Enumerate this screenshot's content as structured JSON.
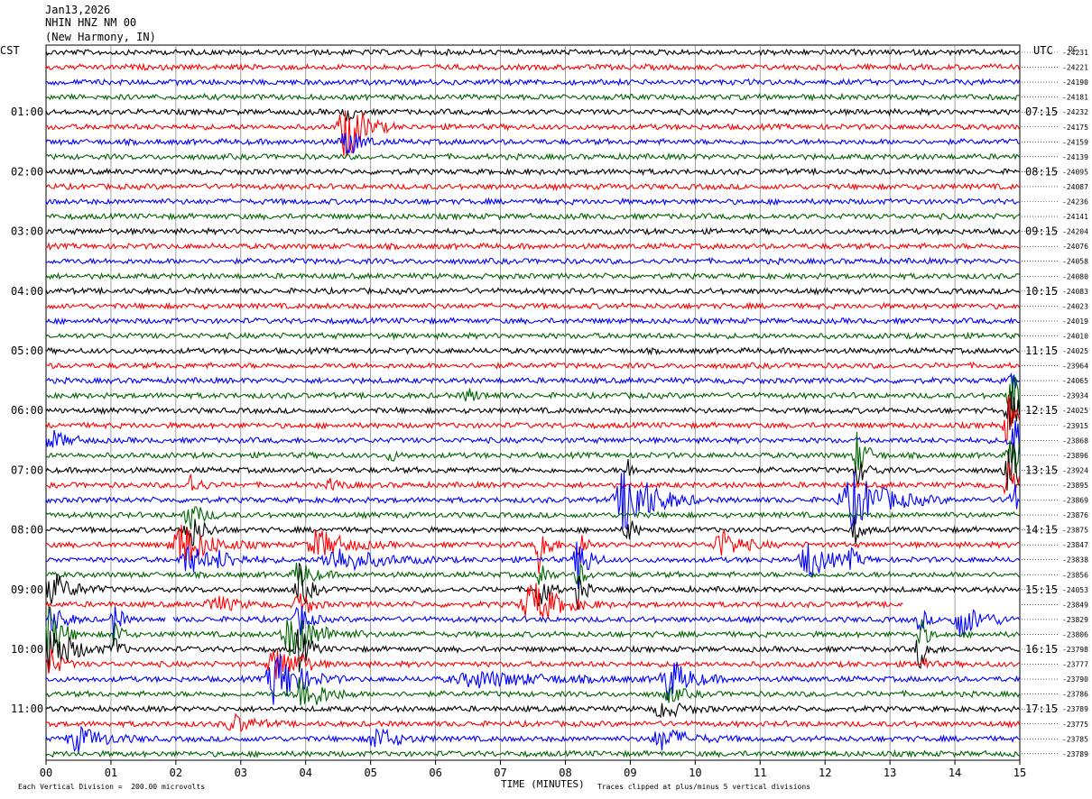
{
  "header": {
    "date": "Jan13,2026",
    "station": "NHIN HNZ NM 00",
    "location": "(New Harmony, IN)"
  },
  "left_tz": "CST",
  "right_tz": "UTC",
  "dc_label": "DC",
  "footer": {
    "scale_note": "Each Vertical Division =  200.00 microvolts",
    "xlabel": "TIME (MINUTES)",
    "clip_note": "Traces clipped at plus/minus 5 vertical divisions"
  },
  "colors": {
    "cycle": [
      "#000000",
      "#ff0000",
      "#0000ff",
      "#006400"
    ],
    "grid": "#888888"
  },
  "chart_data": {
    "type": "line",
    "xlabel": "TIME (MINUTES)",
    "xlim": [
      0,
      15
    ],
    "x_ticks": [
      "00",
      "01",
      "02",
      "03",
      "04",
      "05",
      "06",
      "07",
      "08",
      "09",
      "10",
      "11",
      "12",
      "13",
      "14",
      "15"
    ],
    "trace_count": 48,
    "trace_interval_minutes": 15,
    "left_hour_labels": [
      {
        "row": 4,
        "label": "01:00"
      },
      {
        "row": 8,
        "label": "02:00"
      },
      {
        "row": 12,
        "label": "03:00"
      },
      {
        "row": 16,
        "label": "04:00"
      },
      {
        "row": 20,
        "label": "05:00"
      },
      {
        "row": 24,
        "label": "06:00"
      },
      {
        "row": 28,
        "label": "07:00"
      },
      {
        "row": 32,
        "label": "08:00"
      },
      {
        "row": 36,
        "label": "09:00"
      },
      {
        "row": 40,
        "label": "10:00"
      },
      {
        "row": 44,
        "label": "11:00"
      }
    ],
    "right_hour_labels": [
      {
        "row": 4,
        "label": "07:15"
      },
      {
        "row": 8,
        "label": "08:15"
      },
      {
        "row": 12,
        "label": "09:15"
      },
      {
        "row": 16,
        "label": "10:15"
      },
      {
        "row": 20,
        "label": "11:15"
      },
      {
        "row": 24,
        "label": "12:15"
      },
      {
        "row": 28,
        "label": "13:15"
      },
      {
        "row": 32,
        "label": "14:15"
      },
      {
        "row": 36,
        "label": "15:15"
      },
      {
        "row": 40,
        "label": "16:15"
      },
      {
        "row": 44,
        "label": "17:15"
      }
    ],
    "dc_offsets": [
      "-24231",
      "-24221",
      "-24190",
      "-24181",
      "-24232",
      "-24175",
      "-24159",
      "-24139",
      "-24095",
      "-24087",
      "-24236",
      "-24141",
      "-24204",
      "-24076",
      "-24058",
      "-24080",
      "-24083",
      "-24023",
      "-24019",
      "-24010",
      "-24025",
      "-23964",
      "-24065",
      "-23934",
      "-24025",
      "-23915",
      "-23868",
      "-23896",
      "-23924",
      "-23895",
      "-23869",
      "-23876",
      "-23875",
      "-23847",
      "-23838",
      "-23856",
      "-24053",
      "-23849",
      "-23829",
      "-23806",
      "-23798",
      "-23777",
      "-23790",
      "-23786",
      "-23789",
      "-23775",
      "-23785",
      "-23789"
    ],
    "events": [
      {
        "row": 4,
        "minute": 4.62,
        "amp": 0.9,
        "dur": 0.1
      },
      {
        "row": 5,
        "minute": 4.62,
        "amp": 2.6,
        "dur": 0.25
      },
      {
        "row": 6,
        "minute": 4.62,
        "amp": 1.2,
        "dur": 0.2
      },
      {
        "row": 22,
        "minute": 14.9,
        "amp": 0.8,
        "dur": 0.15
      },
      {
        "row": 23,
        "minute": 6.5,
        "amp": 0.4,
        "dur": 0.2
      },
      {
        "row": 23,
        "minute": 14.9,
        "amp": 2.0,
        "dur": 0.2
      },
      {
        "row": 24,
        "minute": 14.85,
        "amp": 1.2,
        "dur": 0.2
      },
      {
        "row": 25,
        "minute": 14.85,
        "amp": 2.3,
        "dur": 0.2
      },
      {
        "row": 26,
        "minute": 0.1,
        "amp": 0.6,
        "dur": 0.25
      },
      {
        "row": 26,
        "minute": 14.9,
        "amp": 2.0,
        "dur": 0.2
      },
      {
        "row": 27,
        "minute": 5.3,
        "amp": 0.4,
        "dur": 0.1
      },
      {
        "row": 27,
        "minute": 14.9,
        "amp": 1.6,
        "dur": 0.2
      },
      {
        "row": 27,
        "minute": 12.5,
        "amp": 1.5,
        "dur": 0.15
      },
      {
        "row": 28,
        "minute": 14.85,
        "amp": 2.0,
        "dur": 0.2
      },
      {
        "row": 28,
        "minute": 8.95,
        "amp": 0.8,
        "dur": 0.1
      },
      {
        "row": 28,
        "minute": 12.5,
        "amp": 0.9,
        "dur": 0.15
      },
      {
        "row": 29,
        "minute": 2.2,
        "amp": 0.9,
        "dur": 0.15
      },
      {
        "row": 29,
        "minute": 4.4,
        "amp": 0.4,
        "dur": 0.15
      },
      {
        "row": 29,
        "minute": 14.85,
        "amp": 1.5,
        "dur": 0.2
      },
      {
        "row": 30,
        "minute": 8.95,
        "amp": 2.5,
        "dur": 0.4
      },
      {
        "row": 30,
        "minute": 12.45,
        "amp": 1.8,
        "dur": 0.5
      },
      {
        "row": 30,
        "minute": 14.9,
        "amp": 1.2,
        "dur": 0.2
      },
      {
        "row": 31,
        "minute": 2.2,
        "amp": 1.0,
        "dur": 0.2
      },
      {
        "row": 32,
        "minute": 2.2,
        "amp": 1.4,
        "dur": 0.2
      },
      {
        "row": 32,
        "minute": 8.95,
        "amp": 1.2,
        "dur": 0.1
      },
      {
        "row": 32,
        "minute": 12.45,
        "amp": 1.0,
        "dur": 0.1
      },
      {
        "row": 33,
        "minute": 2.1,
        "amp": 1.5,
        "dur": 0.4
      },
      {
        "row": 33,
        "minute": 4.2,
        "amp": 1.0,
        "dur": 0.4
      },
      {
        "row": 33,
        "minute": 7.6,
        "amp": 2.2,
        "dur": 0.12
      },
      {
        "row": 33,
        "minute": 10.4,
        "amp": 1.0,
        "dur": 0.3
      },
      {
        "row": 33,
        "minute": 8.2,
        "amp": 1.5,
        "dur": 0.1
      },
      {
        "row": 34,
        "minute": 2.2,
        "amp": 1.0,
        "dur": 0.3
      },
      {
        "row": 34,
        "minute": 2.7,
        "amp": 0.6,
        "dur": 0.3
      },
      {
        "row": 34,
        "minute": 4.5,
        "amp": 0.8,
        "dur": 0.6
      },
      {
        "row": 34,
        "minute": 8.2,
        "amp": 2.0,
        "dur": 0.15
      },
      {
        "row": 34,
        "minute": 11.75,
        "amp": 1.3,
        "dur": 0.3
      },
      {
        "row": 34,
        "minute": 12.4,
        "amp": 0.7,
        "dur": 0.15
      },
      {
        "row": 35,
        "minute": 3.9,
        "amp": 1.0,
        "dur": 0.2
      },
      {
        "row": 35,
        "minute": 7.6,
        "amp": 1.2,
        "dur": 0.1
      },
      {
        "row": 35,
        "minute": 8.2,
        "amp": 1.0,
        "dur": 0.1
      },
      {
        "row": 36,
        "minute": 0.1,
        "amp": 1.1,
        "dur": 0.3
      },
      {
        "row": 36,
        "minute": 3.9,
        "amp": 1.6,
        "dur": 0.15
      },
      {
        "row": 36,
        "minute": 7.6,
        "amp": 1.8,
        "dur": 0.12
      },
      {
        "row": 36,
        "minute": 8.2,
        "amp": 1.3,
        "dur": 0.1
      },
      {
        "row": 37,
        "minute": 2.6,
        "amp": 0.6,
        "dur": 0.3
      },
      {
        "row": 37,
        "minute": 3.9,
        "amp": 1.2,
        "dur": 0.15
      },
      {
        "row": 37,
        "minute": 7.5,
        "amp": 1.5,
        "dur": 0.4
      },
      {
        "row": 38,
        "minute": 0.1,
        "amp": 0.9,
        "dur": 0.2
      },
      {
        "row": 38,
        "minute": 1.05,
        "amp": 1.3,
        "dur": 0.1
      },
      {
        "row": 38,
        "minute": 3.9,
        "amp": 1.2,
        "dur": 0.15
      },
      {
        "row": 38,
        "minute": 14.1,
        "amp": 1.1,
        "dur": 0.35
      },
      {
        "row": 38,
        "minute": 13.45,
        "amp": 1.0,
        "dur": 0.1
      },
      {
        "row": 39,
        "minute": 0.05,
        "amp": 1.8,
        "dur": 0.2
      },
      {
        "row": 39,
        "minute": 3.8,
        "amp": 1.5,
        "dur": 0.4
      },
      {
        "row": 39,
        "minute": 1.05,
        "amp": 1.2,
        "dur": 0.1
      },
      {
        "row": 39,
        "minute": 13.45,
        "amp": 1.5,
        "dur": 0.1
      },
      {
        "row": 40,
        "minute": 0.1,
        "amp": 1.8,
        "dur": 0.3
      },
      {
        "row": 40,
        "minute": 1.05,
        "amp": 1.0,
        "dur": 0.1
      },
      {
        "row": 40,
        "minute": 3.9,
        "amp": 1.5,
        "dur": 0.15
      },
      {
        "row": 40,
        "minute": 13.45,
        "amp": 1.5,
        "dur": 0.12
      },
      {
        "row": 41,
        "minute": 0.05,
        "amp": 1.2,
        "dur": 0.15
      },
      {
        "row": 41,
        "minute": 3.55,
        "amp": 1.2,
        "dur": 0.3
      },
      {
        "row": 41,
        "minute": 3.9,
        "amp": 1.0,
        "dur": 0.15
      },
      {
        "row": 41,
        "minute": 13.45,
        "amp": 0.9,
        "dur": 0.1
      },
      {
        "row": 42,
        "minute": 3.55,
        "amp": 2.0,
        "dur": 0.35
      },
      {
        "row": 42,
        "minute": 9.6,
        "amp": 1.5,
        "dur": 0.3
      },
      {
        "row": 42,
        "minute": 6.7,
        "amp": 0.5,
        "dur": 1.0
      },
      {
        "row": 43,
        "minute": 3.95,
        "amp": 1.4,
        "dur": 0.3
      },
      {
        "row": 43,
        "minute": 9.6,
        "amp": 0.6,
        "dur": 0.2
      },
      {
        "row": 44,
        "minute": 9.5,
        "amp": 0.6,
        "dur": 0.3
      },
      {
        "row": 45,
        "minute": 2.9,
        "amp": 0.6,
        "dur": 0.3
      },
      {
        "row": 46,
        "minute": 0.5,
        "amp": 0.8,
        "dur": 0.4
      },
      {
        "row": 46,
        "minute": 5.1,
        "amp": 0.8,
        "dur": 0.3
      },
      {
        "row": 46,
        "minute": 9.5,
        "amp": 0.7,
        "dur": 0.4
      }
    ],
    "gaps": [
      {
        "row": 38,
        "from": 1.85,
        "to": 1.95
      },
      {
        "row": 37,
        "from": 13.2,
        "to": 15.0
      }
    ],
    "grid": true
  }
}
